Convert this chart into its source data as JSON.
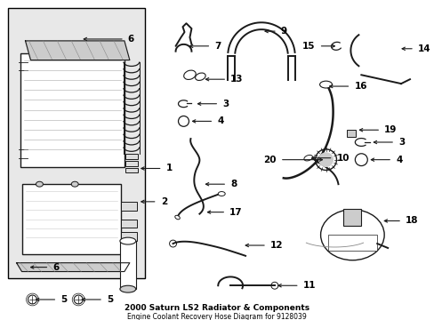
{
  "title": "2000 Saturn LS2 Radiator & Components",
  "subtitle": "Engine Coolant Recovery Hose Diagram for 9128039",
  "bg_color": "#ffffff",
  "line_color": "#1a1a1a",
  "text_color": "#000000",
  "fig_width": 4.89,
  "fig_height": 3.6,
  "dpi": 100
}
